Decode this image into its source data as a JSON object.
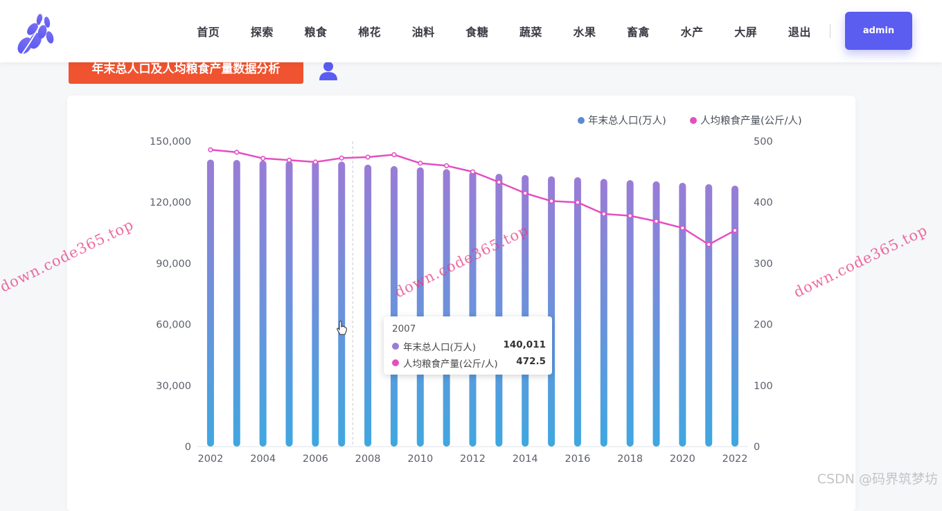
{
  "header": {
    "nav": [
      "首页",
      "探索",
      "粮食",
      "棉花",
      "油料",
      "食糖",
      "蔬菜",
      "水果",
      "畜禽",
      "水产",
      "大屏",
      "退出"
    ],
    "user_button": "admin"
  },
  "section": {
    "title": "年末总人口及人均粮食产量数据分析"
  },
  "chart_data": {
    "type": "bar",
    "categories": [
      "2002",
      "2003",
      "2004",
      "2005",
      "2006",
      "2007",
      "2008",
      "2009",
      "2010",
      "2011",
      "2012",
      "2013",
      "2014",
      "2015",
      "2016",
      "2017",
      "2018",
      "2019",
      "2020",
      "2021",
      "2022"
    ],
    "x_tick_labels": [
      "2002",
      "2004",
      "2006",
      "2008",
      "2010",
      "2012",
      "2014",
      "2016",
      "2018",
      "2020",
      "2022"
    ],
    "series": [
      {
        "name": "年末总人口(万人)",
        "type": "bar",
        "axis": "left",
        "values": [
          141000,
          140800,
          140500,
          140300,
          140200,
          140011,
          138500,
          137800,
          137200,
          136300,
          135100,
          134000,
          133400,
          132800,
          132300,
          131500,
          130900,
          130300,
          129600,
          128900,
          128200
        ],
        "color_top": "#9a7cd6",
        "color_bottom": "#3fa7e0"
      },
      {
        "name": "人均粮食产量(公斤/人)",
        "type": "line",
        "axis": "right",
        "values": [
          486,
          482,
          472,
          469,
          466,
          472.5,
          474,
          478,
          464,
          460,
          450,
          433,
          415,
          402,
          400,
          381,
          378,
          369,
          358,
          331,
          354
        ],
        "color": "#e44ec2"
      }
    ],
    "y_left": {
      "min": 0,
      "max": 150000,
      "ticks": [
        "0",
        "30,000",
        "60,000",
        "90,000",
        "120,000",
        "150,000"
      ]
    },
    "y_right": {
      "min": 0,
      "max": 500,
      "ticks": [
        "0",
        "100",
        "200",
        "300",
        "400",
        "500"
      ]
    },
    "legend": {
      "position": "top-right",
      "items": [
        "年末总人口(万人)",
        "人均粮食产量(公斤/人)"
      ]
    },
    "hover_category": "2007"
  },
  "tooltip": {
    "year": "2007",
    "rows": [
      {
        "label": "年末总人口(万人)",
        "value": "140,011",
        "color": "#9a7cd6"
      },
      {
        "label": "人均粮食产量(公斤/人)",
        "value": "472.5",
        "color": "#e44ec2"
      }
    ]
  },
  "watermark": "down.code365.top",
  "credit": "CSDN @码界筑梦坊",
  "colors": {
    "accent": "#5b5cf0",
    "section_tag": "#f0532f",
    "legend_population": "#5b8ad6",
    "legend_grain": "#e44ec2"
  }
}
